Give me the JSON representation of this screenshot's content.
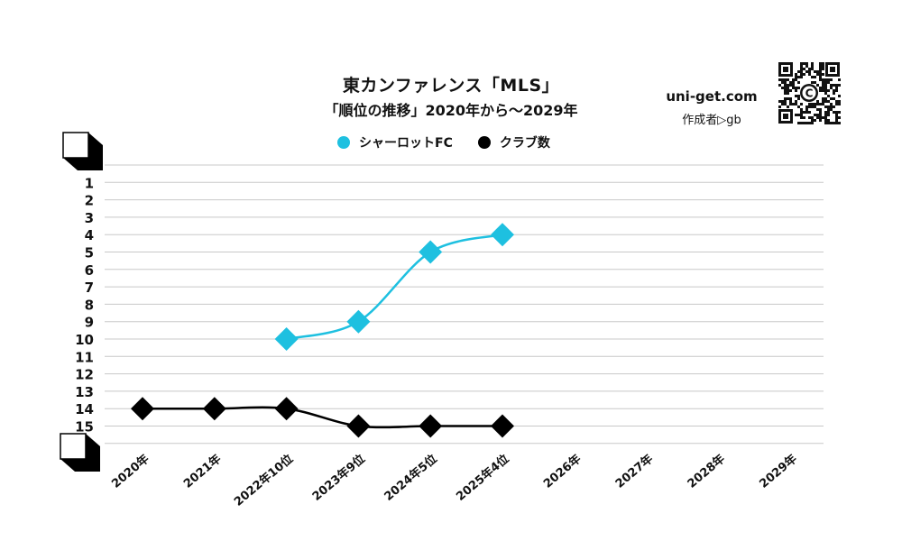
{
  "header": {
    "title": "東カンファレンス「MLS」",
    "subtitle": "「順位の推移」2020年から～2029年"
  },
  "credit": {
    "site": "uni-get.com",
    "author": "作成者▷gb"
  },
  "qr": {
    "center_glyph": "C"
  },
  "chart_data": {
    "type": "line",
    "title": "東カンファレンス「MLS」",
    "subtitle": "「順位の推移」2020年から～2029年",
    "legend_position": "top",
    "grid": true,
    "y_axis": {
      "inverted": true,
      "range": [
        0,
        16
      ],
      "ticks": [
        1,
        2,
        3,
        4,
        5,
        6,
        7,
        8,
        9,
        10,
        11,
        12,
        13,
        14,
        15
      ]
    },
    "x_labels": [
      "2020年",
      "2021年",
      "2022年10位",
      "2023年9位",
      "2024年5位",
      "2025年4位",
      "2026年",
      "2027年",
      "2028年",
      "2029年"
    ],
    "series": [
      {
        "name": "シャーロットFC",
        "color": "#1ec0e0",
        "values": [
          null,
          null,
          10,
          9,
          5,
          4,
          null,
          null,
          null,
          null
        ]
      },
      {
        "name": "クラブ数",
        "color": "#000000",
        "values": [
          14,
          14,
          14,
          15,
          15,
          15,
          null,
          null,
          null,
          null
        ]
      }
    ]
  }
}
